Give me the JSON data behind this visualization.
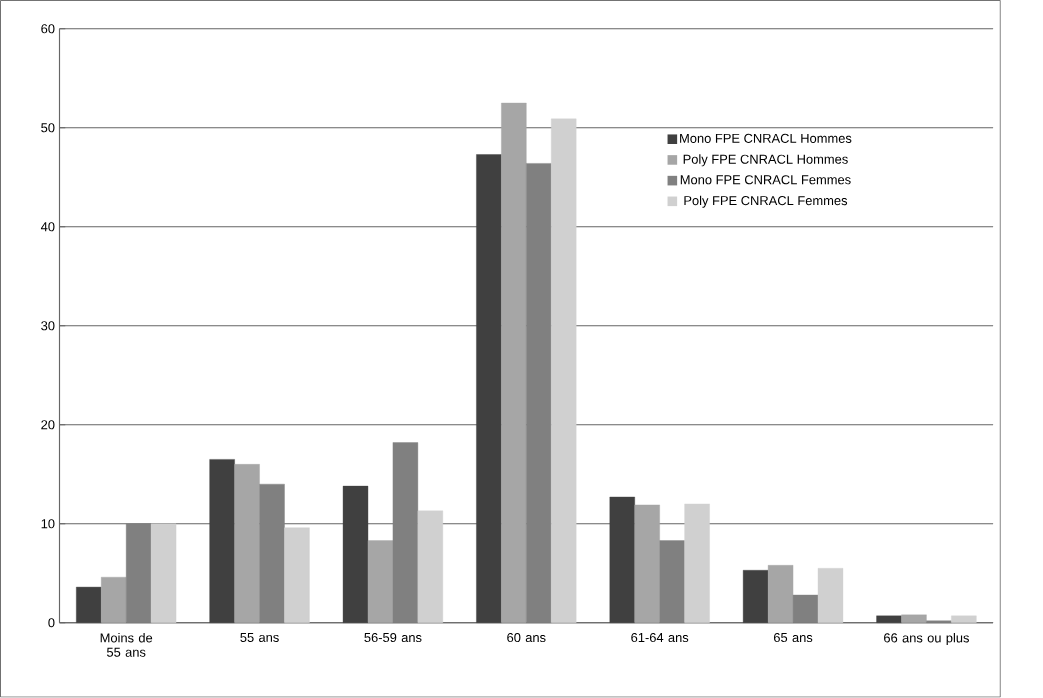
{
  "chart_data": {
    "type": "bar",
    "categories": [
      "Moins de 55 ans",
      "55 ans",
      "56-59 ans",
      "60 ans",
      "61-64 ans",
      "65 ans",
      "66 ans ou plus"
    ],
    "series": [
      {
        "name": "Mono FPE CNRACL Hommes",
        "color": "#404040",
        "values": [
          3.6,
          16.5,
          13.8,
          47.3,
          12.7,
          5.3,
          0.7
        ]
      },
      {
        "name": "Poly FPE CNRACL Hommes",
        "color": "#a6a6a6",
        "values": [
          4.6,
          16.0,
          8.3,
          52.5,
          11.9,
          5.8,
          0.8
        ]
      },
      {
        "name": "Mono FPE CNRACL Femmes",
        "color": "#808080",
        "values": [
          10.0,
          14.0,
          18.2,
          46.4,
          8.3,
          2.8,
          0.2
        ]
      },
      {
        "name": "Poly FPE CNRACL Femmes",
        "color": "#d0d0d0",
        "values": [
          10.0,
          9.6,
          11.3,
          50.9,
          12.0,
          5.5,
          0.7
        ]
      }
    ],
    "ylim": [
      0,
      60
    ],
    "yticks": [
      0,
      10,
      20,
      30,
      40,
      50,
      60
    ],
    "grid": "y",
    "legend": "top right"
  }
}
